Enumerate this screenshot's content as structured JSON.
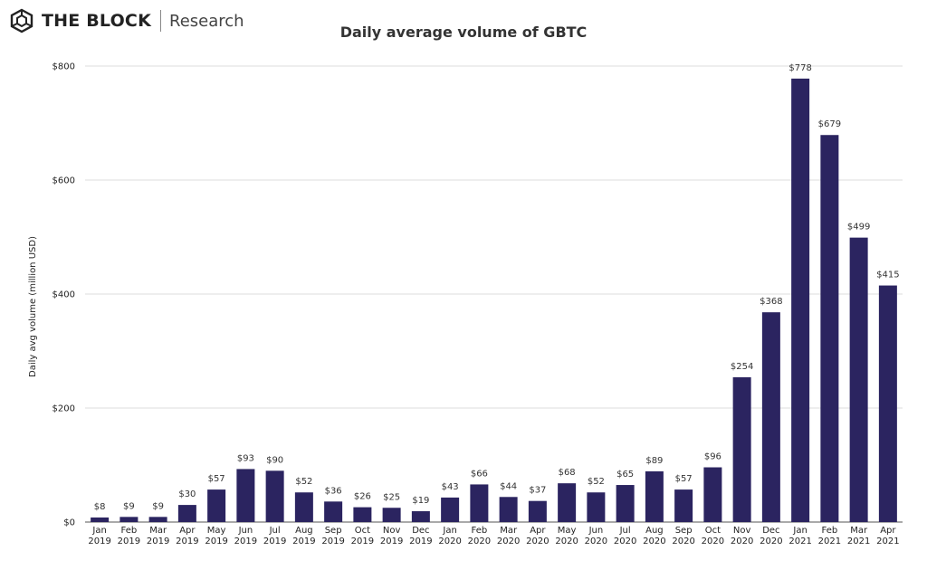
{
  "brand": {
    "name": "THE BLOCK",
    "sub": "Research",
    "logo_icon": "cube-outline-icon"
  },
  "chart_data": {
    "type": "bar",
    "title": "Daily average volume of GBTC",
    "xlabel": "",
    "ylabel": "Daily avg volume (million USD)",
    "ylim": [
      0,
      800
    ],
    "yticks": [
      {
        "value": 0,
        "label": "$0"
      },
      {
        "value": 200,
        "label": "$200"
      },
      {
        "value": 400,
        "label": "$400"
      },
      {
        "value": 600,
        "label": "$600"
      },
      {
        "value": 800,
        "label": "$800"
      }
    ],
    "grid": true,
    "bar_color": "#2b2460",
    "categories": [
      [
        "Jan",
        "2019"
      ],
      [
        "Feb",
        "2019"
      ],
      [
        "Mar",
        "2019"
      ],
      [
        "Apr",
        "2019"
      ],
      [
        "May",
        "2019"
      ],
      [
        "Jun",
        "2019"
      ],
      [
        "Jul",
        "2019"
      ],
      [
        "Aug",
        "2019"
      ],
      [
        "Sep",
        "2019"
      ],
      [
        "Oct",
        "2019"
      ],
      [
        "Nov",
        "2019"
      ],
      [
        "Dec",
        "2019"
      ],
      [
        "Jan",
        "2020"
      ],
      [
        "Feb",
        "2020"
      ],
      [
        "Mar",
        "2020"
      ],
      [
        "Apr",
        "2020"
      ],
      [
        "May",
        "2020"
      ],
      [
        "Jun",
        "2020"
      ],
      [
        "Jul",
        "2020"
      ],
      [
        "Aug",
        "2020"
      ],
      [
        "Sep",
        "2020"
      ],
      [
        "Oct",
        "2020"
      ],
      [
        "Nov",
        "2020"
      ],
      [
        "Dec",
        "2020"
      ],
      [
        "Jan",
        "2021"
      ],
      [
        "Feb",
        "2021"
      ],
      [
        "Mar",
        "2021"
      ],
      [
        "Apr",
        "2021"
      ]
    ],
    "values": [
      8,
      9,
      9,
      30,
      57,
      93,
      90,
      52,
      36,
      26,
      25,
      19,
      43,
      66,
      44,
      37,
      68,
      52,
      65,
      89,
      57,
      96,
      254,
      368,
      778,
      679,
      499,
      415
    ],
    "labels": [
      "$8",
      "$9",
      "$9",
      "$30",
      "$57",
      "$93",
      "$90",
      "$52",
      "$36",
      "$26",
      "$25",
      "$19",
      "$43",
      "$66",
      "$44",
      "$37",
      "$68",
      "$52",
      "$65",
      "$89",
      "$57",
      "$96",
      "$254",
      "$368",
      "$778",
      "$679",
      "$499",
      "$415"
    ]
  }
}
